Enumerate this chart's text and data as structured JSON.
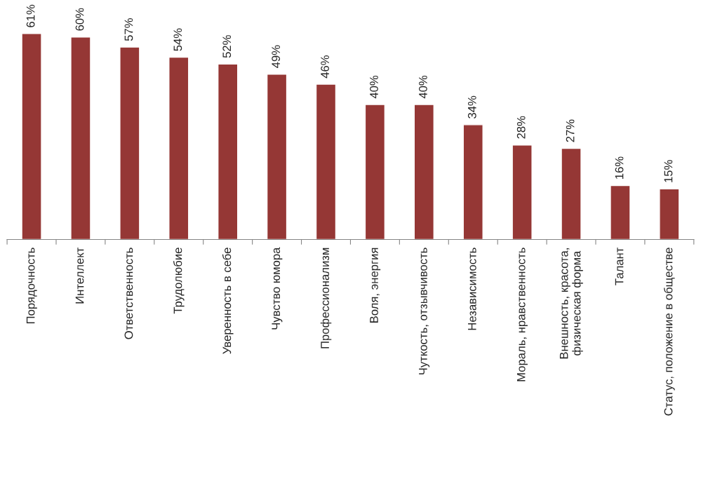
{
  "chart_data": {
    "type": "bar",
    "categories": [
      "Порядочность",
      "Интеллект",
      "Ответственность",
      "Трудолюбие",
      "Уверенность в себе",
      "Чувство юмора",
      "Профессионализм",
      "Воля, энергия",
      "Чуткость, отзывчивость",
      "Независимость",
      "Мораль, нравственность",
      "Внешность, красота, физическая форма",
      "Талант",
      "Статус, положение в обществе"
    ],
    "values": [
      61,
      60,
      57,
      54,
      52,
      49,
      46,
      40,
      40,
      34,
      28,
      27,
      16,
      15
    ],
    "value_labels": [
      "61%",
      "60%",
      "57%",
      "54%",
      "52%",
      "49%",
      "46%",
      "40%",
      "40%",
      "34%",
      "28%",
      "27%",
      "16%",
      "15%"
    ],
    "color": "#953735",
    "tick_labels": "x",
    "grid": false,
    "legend": false
  }
}
